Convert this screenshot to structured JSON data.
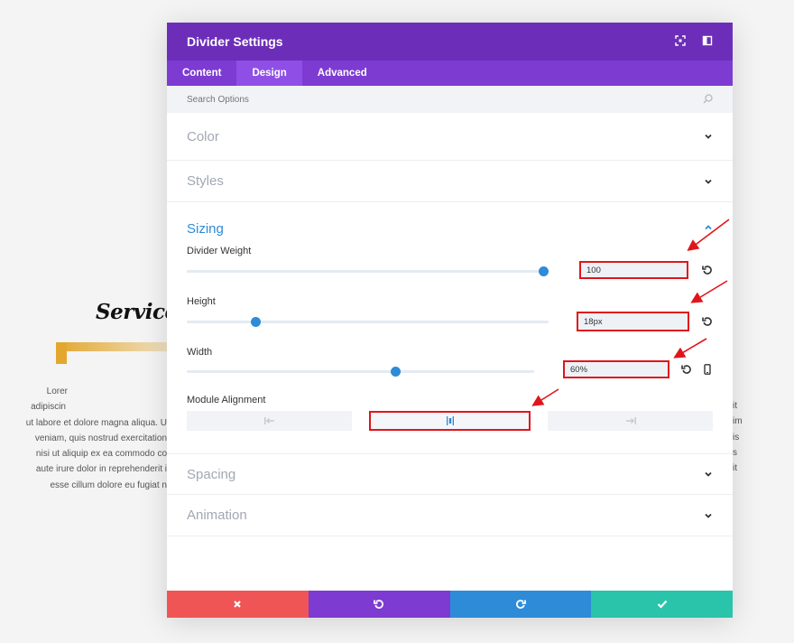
{
  "background": {
    "title": "Services",
    "left_lines": [
      "Lorer",
      "adipiscin",
      "ut labore et dolore magna aliqua. U",
      "veniam, quis nostrud exercitation",
      "nisi ut aliquip ex ea commodo co",
      "aute irure dolor in reprehenderit i",
      "esse cillum dolore eu fugiat n"
    ],
    "right_lines": [
      "it",
      "im",
      "is",
      "s",
      "it"
    ]
  },
  "modal": {
    "title": "Divider Settings",
    "tabs": [
      {
        "label": "Content"
      },
      {
        "label": "Design"
      },
      {
        "label": "Advanced"
      }
    ],
    "active_tab": "Design",
    "search_placeholder": "Search Options",
    "sections": {
      "color": "Color",
      "styles": "Styles",
      "sizing": "Sizing",
      "spacing": "Spacing",
      "animation": "Animation"
    },
    "sizing": {
      "divider_weight": {
        "label": "Divider Weight",
        "value": "100",
        "slider_fraction": 1.0
      },
      "height": {
        "label": "Height",
        "value": "18px",
        "slider_fraction": 0.19
      },
      "width": {
        "label": "Width",
        "value": "60%",
        "slider_fraction": 0.6
      },
      "module_alignment": {
        "label": "Module Alignment",
        "options": [
          "left",
          "center",
          "right"
        ],
        "selected": "center"
      }
    }
  },
  "colors": {
    "header": "#6c2eb9",
    "tabs": "#7d3bd1",
    "tab_active": "#8f4fe6",
    "accent": "#2e8bd8",
    "cancel": "#ef5555",
    "undo": "#7d3bd1",
    "redo": "#2e8bd8",
    "save": "#29c4a9",
    "highlight": "#e0151b"
  },
  "icons": {
    "expand": "expand-icon",
    "sidebar": "sidebar-layout-icon",
    "search": "search-icon",
    "chevron_down": "chevron-down-icon",
    "chevron_up": "chevron-up-icon",
    "reset": "reset-icon",
    "device": "phone-icon",
    "cancel": "close-icon",
    "undo": "undo-icon",
    "redo": "redo-icon",
    "save": "checkmark-icon"
  }
}
